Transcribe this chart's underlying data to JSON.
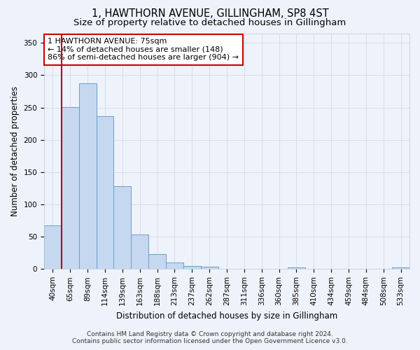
{
  "title": "1, HAWTHORN AVENUE, GILLINGHAM, SP8 4ST",
  "subtitle": "Size of property relative to detached houses in Gillingham",
  "xlabel": "Distribution of detached houses by size in Gillingham",
  "ylabel": "Number of detached properties",
  "footer_line1": "Contains HM Land Registry data © Crown copyright and database right 2024.",
  "footer_line2": "Contains public sector information licensed under the Open Government Licence v3.0.",
  "bin_labels": [
    "40sqm",
    "65sqm",
    "89sqm",
    "114sqm",
    "139sqm",
    "163sqm",
    "188sqm",
    "213sqm",
    "237sqm",
    "262sqm",
    "287sqm",
    "311sqm",
    "336sqm",
    "360sqm",
    "385sqm",
    "410sqm",
    "434sqm",
    "459sqm",
    "484sqm",
    "508sqm",
    "533sqm"
  ],
  "bar_values": [
    68,
    251,
    287,
    237,
    128,
    53,
    23,
    10,
    5,
    4,
    0,
    0,
    0,
    0,
    3,
    0,
    0,
    0,
    0,
    0,
    3
  ],
  "bar_color": "#c5d8f0",
  "bar_edgecolor": "#6b9ec8",
  "property_line_x": 0.5,
  "property_line_color": "#bb0000",
  "annotation_line1": "1 HAWTHORN AVENUE: 75sqm",
  "annotation_line2": "← 14% of detached houses are smaller (148)",
  "annotation_line3": "86% of semi-detached houses are larger (904) →",
  "annotation_box_color": "#ffffff",
  "annotation_box_edgecolor": "#cc0000",
  "ylim": [
    0,
    365
  ],
  "yticks": [
    0,
    50,
    100,
    150,
    200,
    250,
    300,
    350
  ],
  "background_color": "#eef2fa",
  "grid_color": "#d8dde8",
  "title_fontsize": 10.5,
  "subtitle_fontsize": 9.5,
  "axis_label_fontsize": 8.5,
  "tick_fontsize": 7.5,
  "annotation_fontsize": 8,
  "footer_fontsize": 6.5
}
